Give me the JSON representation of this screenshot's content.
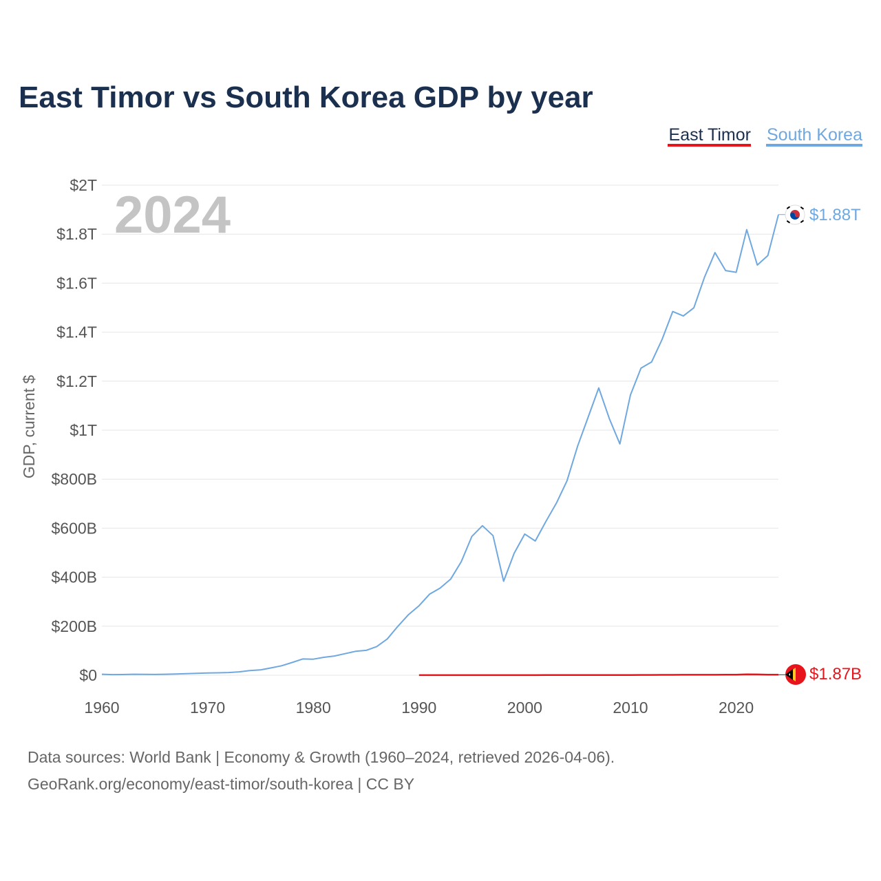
{
  "chart_data": {
    "type": "line",
    "title": "East Timor vs South Korea GDP by year",
    "ylabel": "GDP, current $",
    "xlabel": "",
    "year_label": "2024",
    "x_ticks": [
      1960,
      1970,
      1980,
      1990,
      2000,
      2010,
      2020
    ],
    "x_tick_labels": [
      "1960",
      "1970",
      "1980",
      "1990",
      "2000",
      "2010",
      "2020"
    ],
    "xlim": [
      1960,
      2024
    ],
    "y_ticks": [
      0,
      200,
      400,
      600,
      800,
      1000,
      1200,
      1400,
      1600,
      1800,
      2000
    ],
    "y_tick_labels": [
      "$0",
      "$200B",
      "$400B",
      "$600B",
      "$800B",
      "$1T",
      "$1.2T",
      "$1.4T",
      "$1.6T",
      "$1.8T",
      "$2T"
    ],
    "ylim": [
      0,
      2000
    ],
    "y_units": "billions USD",
    "legend": [
      "East Timor",
      "South Korea"
    ],
    "legend_position": "top-right",
    "grid": true,
    "series": [
      {
        "name": "East Timor",
        "color": "#e8141c",
        "end_label": "$1.87B",
        "flag": "east-timor-flag",
        "x": [
          1990,
          1991,
          1992,
          1993,
          1994,
          1995,
          1996,
          1997,
          1998,
          1999,
          2000,
          2001,
          2002,
          2003,
          2004,
          2005,
          2006,
          2007,
          2008,
          2009,
          2010,
          2011,
          2012,
          2013,
          2014,
          2015,
          2016,
          2017,
          2018,
          2019,
          2020,
          2021,
          2022,
          2023,
          2024
        ],
        "values": [
          0.4,
          0.4,
          0.4,
          0.4,
          0.4,
          0.4,
          0.4,
          0.4,
          0.4,
          0.4,
          0.4,
          0.4,
          0.5,
          0.5,
          0.5,
          0.5,
          0.5,
          0.6,
          0.6,
          0.7,
          0.9,
          1.0,
          1.2,
          1.4,
          1.4,
          1.6,
          1.6,
          1.6,
          1.6,
          2.0,
          1.9,
          3.6,
          3.2,
          2.3,
          1.87
        ]
      },
      {
        "name": "South Korea",
        "color": "#6fa8e0",
        "end_label": "$1.88T",
        "flag": "south-korea-flag",
        "x": [
          1960,
          1961,
          1962,
          1963,
          1964,
          1965,
          1966,
          1967,
          1968,
          1969,
          1970,
          1971,
          1972,
          1973,
          1974,
          1975,
          1976,
          1977,
          1978,
          1979,
          1980,
          1981,
          1982,
          1983,
          1984,
          1985,
          1986,
          1987,
          1988,
          1989,
          1990,
          1991,
          1992,
          1993,
          1994,
          1995,
          1996,
          1997,
          1998,
          1999,
          2000,
          2001,
          2002,
          2003,
          2004,
          2005,
          2006,
          2007,
          2008,
          2009,
          2010,
          2011,
          2012,
          2013,
          2014,
          2015,
          2016,
          2017,
          2018,
          2019,
          2020,
          2021,
          2022,
          2023,
          2024
        ],
        "values": [
          4,
          2.4,
          2.8,
          3.9,
          3.5,
          3.1,
          3.9,
          4.8,
          6.1,
          7.5,
          9,
          9.9,
          10.9,
          13.9,
          19.2,
          21.7,
          29.8,
          38.4,
          52,
          66.2,
          65.4,
          72.9,
          78.4,
          87.8,
          97.5,
          101.3,
          116.8,
          147.9,
          199.6,
          246.9,
          283.4,
          330.6,
          355.5,
          392.7,
          463.6,
          566.6,
          610,
          569.8,
          383.3,
          497.5,
          576.2,
          547.7,
          627.2,
          702.7,
          793.2,
          934.9,
          1053.2,
          1172.6,
          1047.3,
          943.9,
          1144.1,
          1253.2,
          1278.4,
          1370.8,
          1484.3,
          1466,
          1499.4,
          1623.9,
          1724.8,
          1651.4,
          1644.3,
          1818.4,
          1673.9,
          1712.8,
          1880
        ]
      }
    ]
  },
  "source_line_1": "Data sources: World Bank | Economy & Growth (1960–2024, retrieved 2026-04-06).",
  "source_line_2": "GeoRank.org/economy/east-timor/south-korea | CC BY"
}
